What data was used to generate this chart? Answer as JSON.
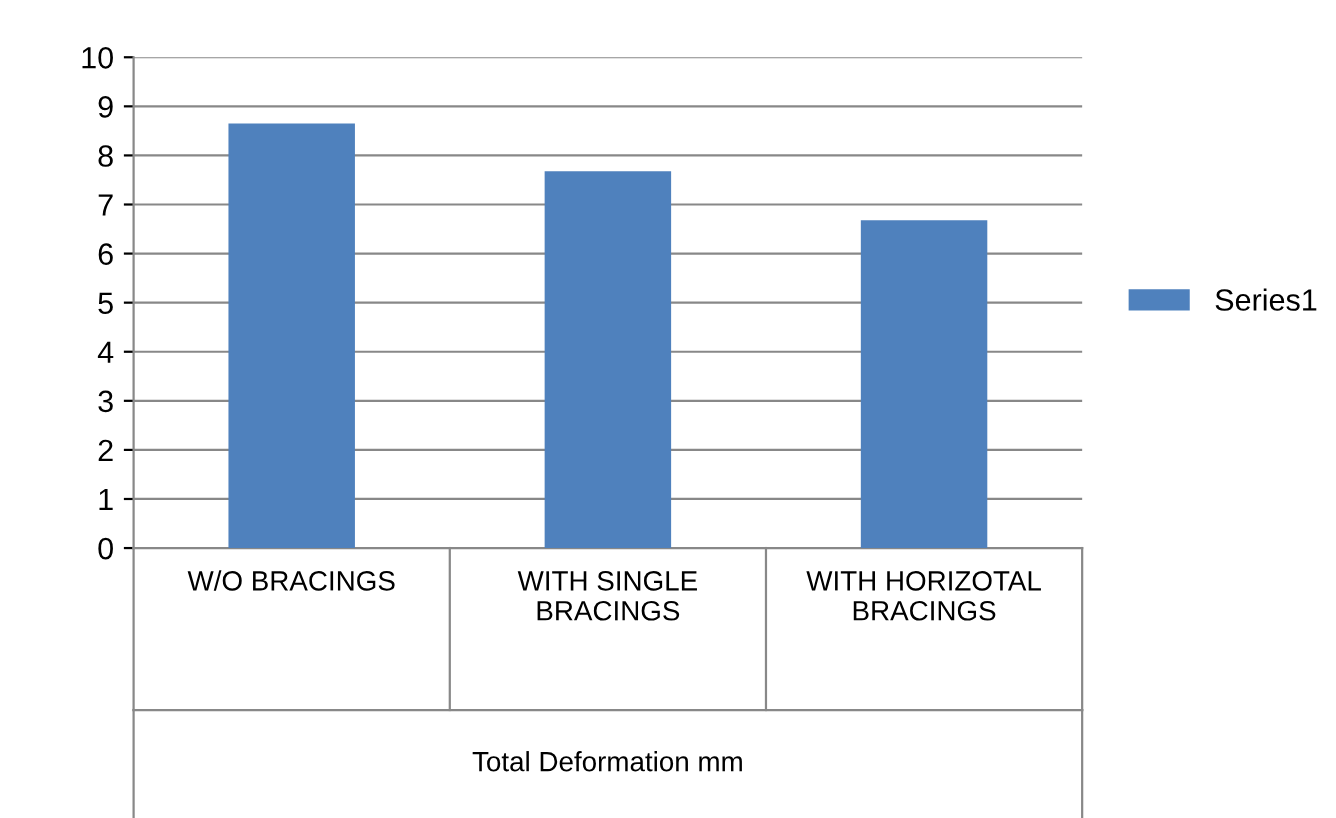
{
  "chart_data": {
    "type": "bar",
    "categories": [
      "W/O BRACINGS",
      "WITH SINGLE\nBRACINGS",
      "WITH HORIZOTAL\nBRACINGS"
    ],
    "xlabel": "Total Deformation mm",
    "series": [
      {
        "name": "Series1",
        "color": "#4f81bd",
        "values": [
          8.65,
          7.68,
          6.68
        ]
      }
    ],
    "ylim": [
      0,
      10
    ],
    "yticks": [
      0,
      1,
      2,
      3,
      4,
      5,
      6,
      7,
      8,
      9,
      10
    ],
    "grid": "y",
    "legend": "right"
  }
}
